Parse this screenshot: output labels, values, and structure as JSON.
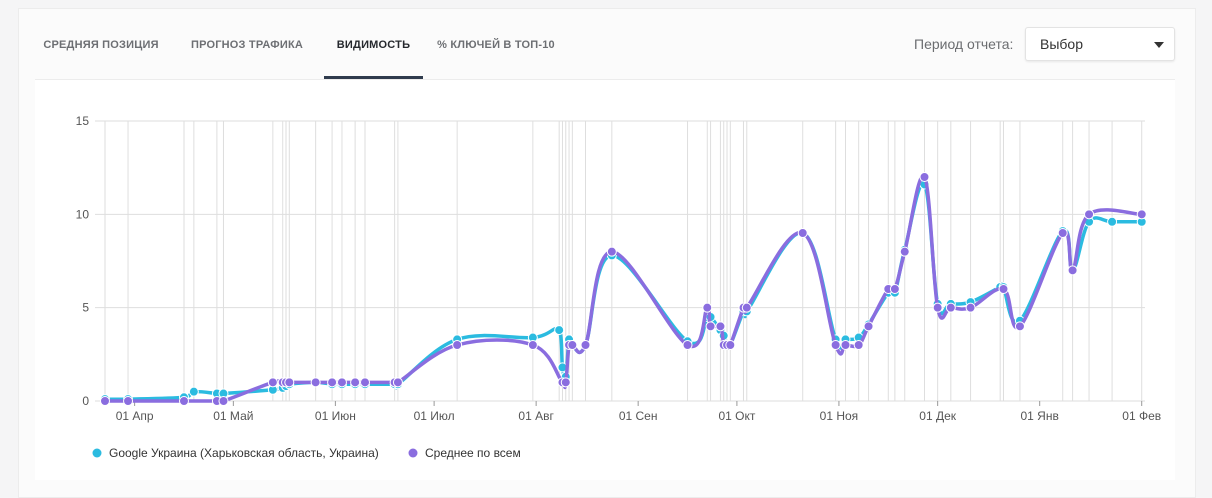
{
  "tabs": [
    {
      "label": "Средняя позиция"
    },
    {
      "label": "Прогноз трафика"
    },
    {
      "label": "Видимость"
    },
    {
      "label": "% ключей в топ-10"
    }
  ],
  "period": {
    "label": "Период отчета:",
    "value": "Выбор"
  },
  "colors": {
    "series1": "#2bbbe0",
    "series2": "#8a6ddf",
    "grid": "#dedede"
  },
  "chart_data": {
    "type": "line",
    "title": "",
    "xlabel": "",
    "ylabel": "",
    "ylim": [
      0,
      15
    ],
    "yticks": [
      0,
      5,
      10,
      15
    ],
    "xlim": [
      "2017-03-23",
      "2018-02-02"
    ],
    "xticks": [
      {
        "date": "2017-04-01",
        "label": "01 Апр"
      },
      {
        "date": "2017-05-01",
        "label": "01 Май"
      },
      {
        "date": "2017-06-01",
        "label": "01 Июн"
      },
      {
        "date": "2017-07-01",
        "label": "01 Июл"
      },
      {
        "date": "2017-08-01",
        "label": "01 Авг"
      },
      {
        "date": "2017-09-01",
        "label": "01 Сен"
      },
      {
        "date": "2017-10-01",
        "label": "01 Окт"
      },
      {
        "date": "2017-11-01",
        "label": "01 Ноя"
      },
      {
        "date": "2017-12-01",
        "label": "01 Дек"
      },
      {
        "date": "2018-01-01",
        "label": "01 Янв"
      },
      {
        "date": "2018-02-01",
        "label": "01 Фев"
      }
    ],
    "vertical_grid": "at each data point",
    "legend_position": "bottom-left",
    "series": [
      {
        "name": "Google Украина (Харьковская область, Украина)",
        "x": [
          "2017-03-23",
          "2017-03-30",
          "2017-04-16",
          "2017-04-19",
          "2017-04-26",
          "2017-04-28",
          "2017-05-13",
          "2017-05-16",
          "2017-05-17",
          "2017-05-18",
          "2017-05-26",
          "2017-05-31",
          "2017-06-03",
          "2017-06-07",
          "2017-06-10",
          "2017-06-19",
          "2017-06-20",
          "2017-07-08",
          "2017-07-31",
          "2017-08-08",
          "2017-08-09",
          "2017-08-10",
          "2017-08-11",
          "2017-08-12",
          "2017-08-16",
          "2017-08-24",
          "2017-09-16",
          "2017-09-22",
          "2017-09-23",
          "2017-09-26",
          "2017-09-27",
          "2017-09-28",
          "2017-09-29",
          "2017-10-03",
          "2017-10-04",
          "2017-10-21",
          "2017-10-31",
          "2017-11-03",
          "2017-11-07",
          "2017-11-10",
          "2017-11-16",
          "2017-11-18",
          "2017-11-21",
          "2017-11-27",
          "2017-12-01",
          "2017-12-05",
          "2017-12-11",
          "2017-12-20",
          "2017-12-21",
          "2017-12-26",
          "2018-01-08",
          "2018-01-11",
          "2018-01-16",
          "2018-01-23",
          "2018-02-01"
        ],
        "y": [
          0.1,
          0.1,
          0.2,
          0.5,
          0.4,
          0.4,
          0.6,
          0.7,
          0.8,
          0.9,
          1.0,
          0.9,
          0.9,
          0.9,
          0.9,
          0.9,
          0.9,
          3.3,
          3.4,
          3.8,
          1.8,
          1.3,
          3.3,
          3.0,
          3.0,
          7.8,
          3.2,
          4.5,
          4.5,
          3.8,
          3.5,
          3.0,
          3.0,
          4.8,
          4.8,
          9.0,
          3.3,
          3.3,
          3.4,
          4.1,
          5.8,
          5.8,
          8.1,
          11.6,
          5.2,
          5.2,
          5.3,
          6.1,
          6.1,
          4.3,
          9.1,
          7.0,
          9.6,
          9.6,
          9.6
        ]
      },
      {
        "name": "Среднее по всем",
        "x": [
          "2017-03-23",
          "2017-03-30",
          "2017-04-16",
          "2017-04-26",
          "2017-04-28",
          "2017-05-13",
          "2017-05-16",
          "2017-05-17",
          "2017-05-18",
          "2017-05-26",
          "2017-05-31",
          "2017-06-03",
          "2017-06-07",
          "2017-06-10",
          "2017-06-19",
          "2017-06-20",
          "2017-07-08",
          "2017-07-31",
          "2017-08-09",
          "2017-08-10",
          "2017-08-11",
          "2017-08-12",
          "2017-08-16",
          "2017-08-24",
          "2017-09-16",
          "2017-09-22",
          "2017-09-23",
          "2017-09-26",
          "2017-09-27",
          "2017-09-28",
          "2017-09-29",
          "2017-10-03",
          "2017-10-04",
          "2017-10-21",
          "2017-10-31",
          "2017-11-03",
          "2017-11-07",
          "2017-11-10",
          "2017-11-16",
          "2017-11-18",
          "2017-11-21",
          "2017-11-27",
          "2017-12-01",
          "2017-12-05",
          "2017-12-11",
          "2017-12-21",
          "2017-12-26",
          "2018-01-08",
          "2018-01-11",
          "2018-01-16",
          "2018-02-01"
        ],
        "y": [
          0,
          0,
          0,
          0,
          0,
          1,
          1,
          1,
          1,
          1,
          1,
          1,
          1,
          1,
          1,
          1,
          3,
          3,
          1,
          1,
          3,
          3,
          3,
          8,
          3,
          5,
          4,
          4,
          3,
          3,
          3,
          5,
          5,
          9,
          3,
          3,
          3,
          4,
          6,
          6,
          8,
          12,
          5,
          5,
          5,
          6,
          4,
          9,
          7,
          10,
          10
        ]
      }
    ]
  }
}
